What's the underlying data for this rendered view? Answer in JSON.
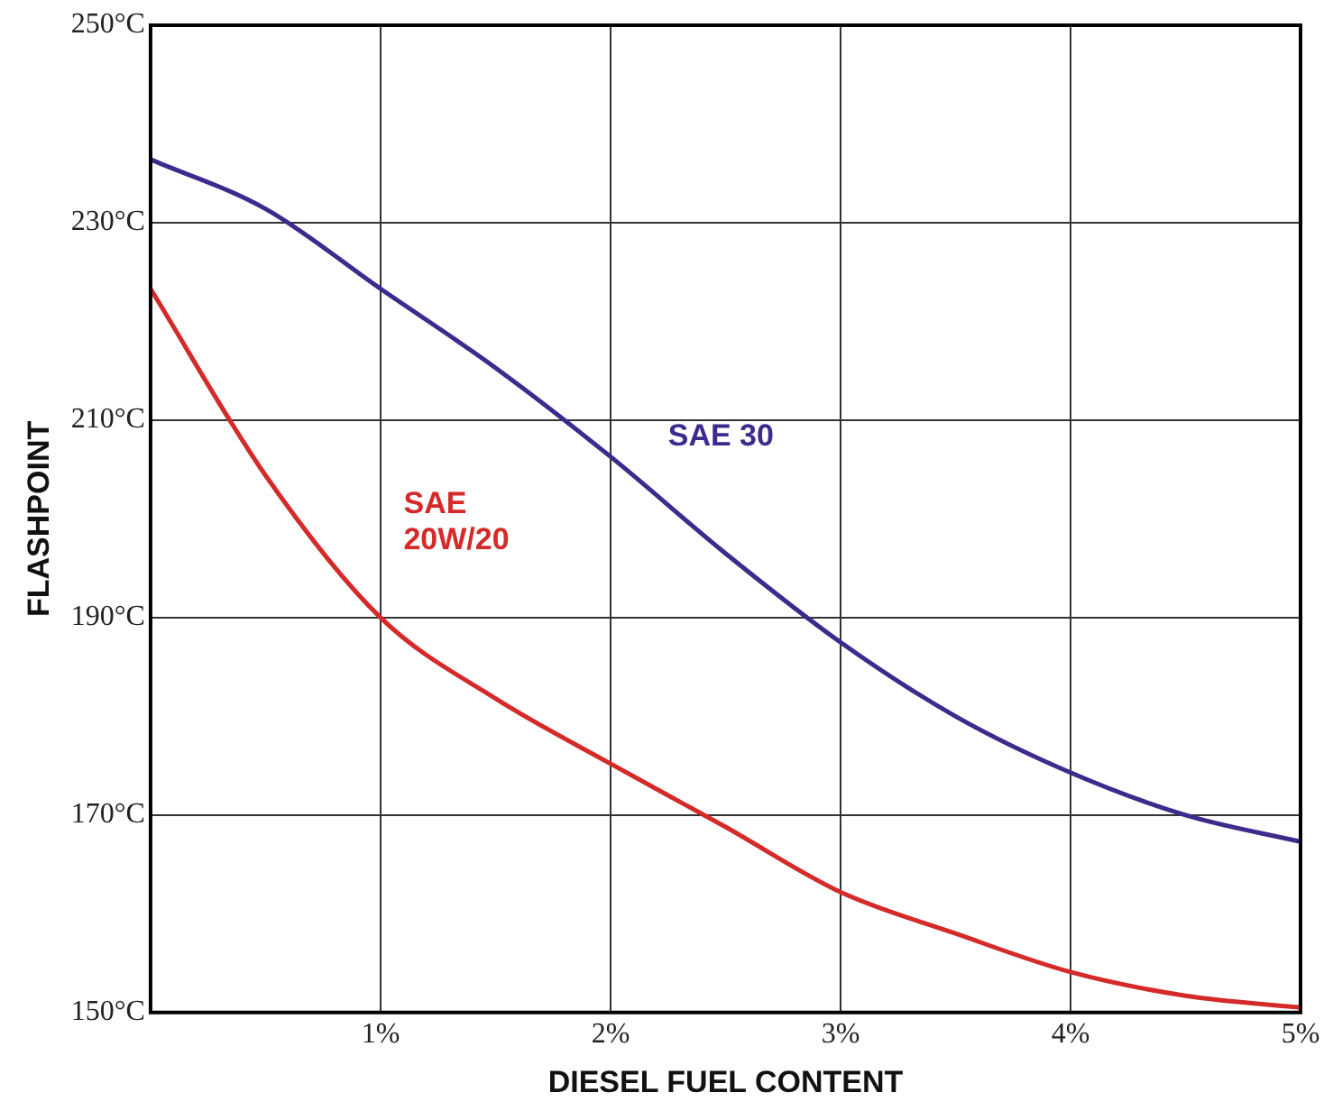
{
  "chart_data": {
    "type": "line",
    "xlabel": "DIESEL FUEL CONTENT",
    "ylabel": "FLASHPOINT",
    "x": [
      0,
      0.5,
      1,
      1.5,
      2,
      2.5,
      3,
      3.5,
      4,
      4.5,
      5
    ],
    "series": [
      {
        "name": "SAE 30",
        "color": "#3d2a8c",
        "values": [
          236.4,
          231.4,
          223.3,
          215.3,
          206.3,
          196.5,
          187.5,
          180,
          174.3,
          170,
          167.3
        ]
      },
      {
        "name": "SAE 20W/20",
        "color": "#d42a2a",
        "values": [
          223.3,
          204.4,
          190,
          181.8,
          175.2,
          168.8,
          162.2,
          158,
          154.1,
          151.7,
          150.5
        ]
      }
    ],
    "xlim": [
      0,
      5
    ],
    "xticks": [
      {
        "value": 0,
        "label": null
      },
      {
        "value": 1,
        "label": "1%"
      },
      {
        "value": 2,
        "label": "2%"
      },
      {
        "value": 3,
        "label": "3%"
      },
      {
        "value": 4,
        "label": "4%"
      },
      {
        "value": 5,
        "label": "5%"
      }
    ],
    "ylim": [
      150,
      250
    ],
    "yticks": [
      {
        "value": 150,
        "label": "150°C"
      },
      {
        "value": 170,
        "label": "170°C"
      },
      {
        "value": 190,
        "label": "190°C"
      },
      {
        "value": 210,
        "label": "210°C"
      },
      {
        "value": 230,
        "label": "230°C"
      },
      {
        "value": 250,
        "label": "250°C"
      }
    ],
    "grid": true,
    "legend": false,
    "marker": "none",
    "line_style": "solid"
  }
}
